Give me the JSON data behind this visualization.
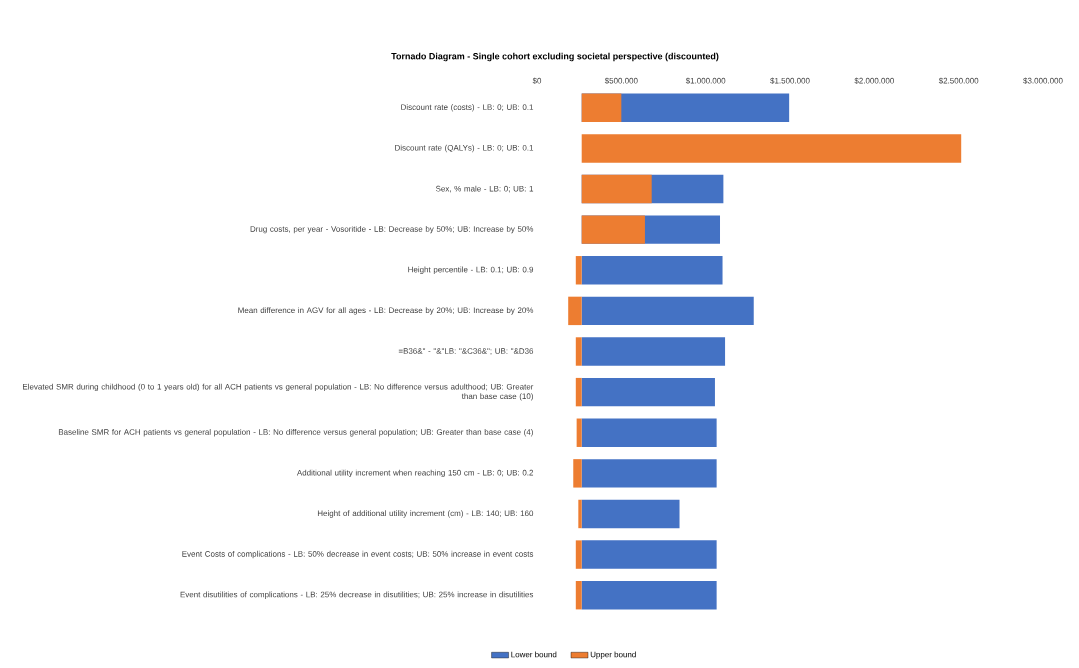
{
  "chart_data": {
    "type": "bar",
    "orientation": "horizontal",
    "title": "Tornado Diagram - Single cohort excluding societal perspective (discounted)",
    "categories": [
      "Discount rate (costs) - LB: 0; UB: 0.1",
      "Discount rate (QALYs) - LB: 0; UB: 0.1",
      "Sex, % male - LB: 0; UB: 1",
      "Drug costs, per year - Vosoritide - LB: Decrease by 50%; UB: Increase by 50%",
      "Height percentile - LB: 0.1; UB: 0.9",
      "Mean difference in AGV for all ages - LB: Decrease by 20%; UB: Increase by 20%",
      "=B36&\" - \"&\"LB: \"&C36&\"; UB: \"&D36",
      "Elevated SMR during childhood (0 to 1 years old) for all ACH patients vs general population - LB: No difference versus adulthood; UB: Greater than base case (10)",
      "Baseline SMR for ACH patients vs general population - LB: No difference versus general population; UB: Greater than base case (4)",
      "Additional utility increment when reaching 150 cm - LB: 0; UB: 0.2",
      "Height of additional utility increment (cm) - LB: 140; UB: 160",
      "Event Costs of complications - LB: 50% decrease in event costs; UB: 50% increase in event costs",
      "Event disutilities of complications - LB: 25% decrease in disutilities; UB: 25% increase in disutilities"
    ],
    "series": [
      {
        "name": "Lower bound",
        "color": "#4472c4",
        "base": [
          265000,
          null,
          265000,
          265000,
          265000,
          265000,
          265000,
          265000,
          265000,
          265000,
          265000,
          265000,
          265000
        ],
        "values": [
          1230000,
          null,
          840000,
          820000,
          835000,
          1020000,
          850000,
          790000,
          800000,
          800000,
          580000,
          800000,
          800000
        ]
      },
      {
        "name": "Upper bound",
        "color": "#ed7d31",
        "base": [
          265000,
          265000,
          265000,
          265000,
          265000,
          265000,
          265000,
          265000,
          265000,
          265000,
          265000,
          265000,
          265000
        ],
        "values": [
          235000,
          2250000,
          415000,
          375000,
          -35000,
          -80000,
          -35000,
          -35000,
          -30000,
          -50000,
          -20000,
          -35000,
          -35000
        ]
      }
    ],
    "xlim": [
      0,
      3000000
    ],
    "xticks": [
      {
        "value": 0,
        "label": "$0"
      },
      {
        "value": 500000,
        "label": "$500.000"
      },
      {
        "value": 1000000,
        "label": "$1.000.000"
      },
      {
        "value": 1500000,
        "label": "$1.500.000"
      },
      {
        "value": 2000000,
        "label": "$2.000.000"
      },
      {
        "value": 2500000,
        "label": "$2.500.000"
      },
      {
        "value": 3000000,
        "label": "$3.000.000"
      }
    ],
    "legend": "bottom"
  }
}
